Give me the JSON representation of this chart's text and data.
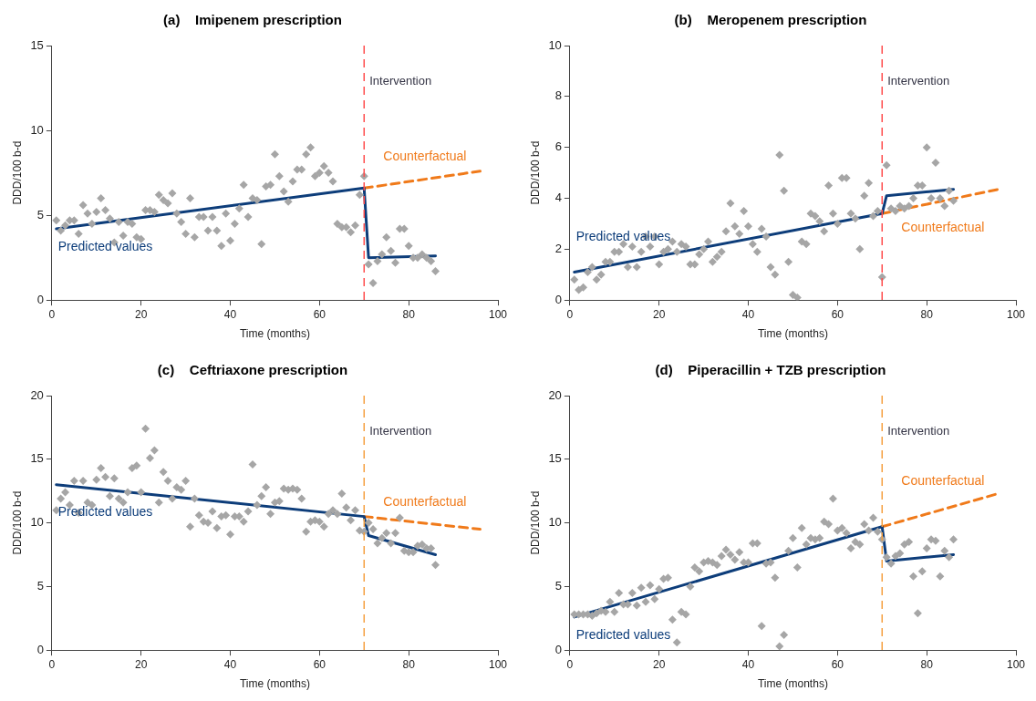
{
  "chart_data": [
    {
      "type": "scatter",
      "title": "(a)    Imipenem prescription",
      "xlabel": "Time (months)",
      "ylabel": "DDD/100 b-d",
      "xlim": [
        0,
        100
      ],
      "xticks": [
        0,
        20,
        40,
        60,
        80,
        100
      ],
      "ylim": [
        0,
        15
      ],
      "yticks": [
        0,
        5,
        10,
        15
      ],
      "grid": false,
      "legend": false,
      "series": [
        {
          "type": "scatter",
          "marker": "diamond",
          "color": "#a6a6a6",
          "x": [
            1,
            2,
            3,
            4,
            5,
            6,
            7,
            8,
            9,
            10,
            11,
            12,
            13,
            14,
            15,
            16,
            17,
            18,
            19,
            20,
            21,
            22,
            23,
            24,
            25,
            26,
            27,
            28,
            29,
            30,
            31,
            32,
            33,
            34,
            35,
            36,
            37,
            38,
            39,
            40,
            41,
            42,
            43,
            44,
            45,
            46,
            47,
            48,
            49,
            50,
            51,
            52,
            53,
            54,
            55,
            56,
            57,
            58,
            59,
            60,
            61,
            62,
            63,
            64,
            65,
            66,
            67,
            68,
            69,
            70,
            71,
            72,
            73,
            74,
            75,
            76,
            77,
            78,
            79,
            80,
            81,
            82,
            83,
            84,
            85,
            86
          ],
          "values": [
            4.7,
            4.1,
            4.4,
            4.7,
            4.7,
            3.9,
            5.6,
            5.1,
            4.5,
            5.2,
            6.0,
            5.3,
            4.8,
            3.4,
            4.6,
            3.8,
            4.6,
            4.5,
            3.7,
            3.6,
            5.3,
            5.3,
            5.2,
            6.2,
            5.9,
            5.7,
            6.3,
            5.1,
            4.6,
            3.9,
            6.0,
            3.7,
            4.9,
            4.9,
            4.1,
            4.9,
            4.1,
            3.2,
            5.1,
            3.5,
            4.5,
            5.4,
            6.8,
            4.9,
            6.0,
            5.9,
            3.3,
            6.7,
            6.8,
            8.6,
            7.3,
            6.4,
            5.8,
            7.0,
            7.7,
            7.7,
            8.6,
            9.0,
            7.3,
            7.5,
            7.9,
            7.5,
            7.0,
            4.5,
            4.3,
            4.3,
            4.0,
            4.4,
            6.2,
            7.3,
            2.1,
            1.0,
            2.3,
            2.7,
            3.7,
            2.9,
            2.2,
            4.2,
            4.2,
            3.2,
            2.5,
            2.5,
            2.7,
            2.5,
            2.3,
            1.7
          ]
        },
        {
          "type": "line",
          "name": "Predicted values",
          "marker": "none",
          "line_style": "solid",
          "color": "#0d3d7a",
          "x": [
            1,
            70,
            71,
            86
          ],
          "values": [
            4.2,
            6.6,
            2.5,
            2.6
          ]
        },
        {
          "type": "line",
          "name": "Counterfactual",
          "marker": "none",
          "line_style": "dashed",
          "color": "#f07a1a",
          "x": [
            70,
            96
          ],
          "values": [
            6.6,
            7.6
          ]
        }
      ],
      "ref_lines": [
        {
          "axis": "x",
          "value": 70,
          "label": "Intervention",
          "color": "#ff4d4d",
          "line_style": "dashed"
        }
      ]
    },
    {
      "type": "scatter",
      "title": "(b)    Meropenem prescription",
      "xlabel": "Time (months)",
      "ylabel": "DDD/100 b-d",
      "xlim": [
        0,
        100
      ],
      "xticks": [
        0,
        20,
        40,
        60,
        80,
        100
      ],
      "ylim": [
        0,
        10
      ],
      "yticks": [
        0,
        2,
        4,
        6,
        8,
        10
      ],
      "grid": false,
      "legend": false,
      "series": [
        {
          "type": "scatter",
          "marker": "diamond",
          "color": "#a6a6a6",
          "x": [
            1,
            2,
            3,
            4,
            5,
            6,
            7,
            8,
            9,
            10,
            11,
            12,
            13,
            14,
            15,
            16,
            17,
            18,
            19,
            20,
            21,
            22,
            23,
            24,
            25,
            26,
            27,
            28,
            29,
            30,
            31,
            32,
            33,
            34,
            35,
            36,
            37,
            38,
            39,
            40,
            41,
            42,
            43,
            44,
            45,
            46,
            47,
            48,
            49,
            50,
            51,
            52,
            53,
            54,
            55,
            56,
            57,
            58,
            59,
            60,
            61,
            62,
            63,
            64,
            65,
            66,
            67,
            68,
            69,
            70,
            71,
            72,
            73,
            74,
            75,
            76,
            77,
            78,
            79,
            80,
            81,
            82,
            83,
            84,
            85,
            86
          ],
          "values": [
            0.8,
            0.4,
            0.5,
            1.1,
            1.3,
            0.8,
            1.0,
            1.5,
            1.5,
            1.9,
            1.9,
            2.2,
            1.3,
            2.1,
            1.3,
            1.9,
            2.5,
            2.1,
            2.5,
            1.4,
            1.9,
            2.0,
            2.3,
            1.9,
            2.2,
            2.1,
            1.4,
            1.4,
            1.8,
            2.0,
            2.3,
            1.5,
            1.7,
            1.9,
            2.7,
            3.8,
            2.9,
            2.6,
            3.5,
            2.9,
            2.2,
            1.9,
            2.8,
            2.5,
            1.3,
            1.0,
            5.7,
            4.3,
            1.5,
            0.2,
            0.1,
            2.3,
            2.2,
            3.4,
            3.3,
            3.1,
            2.7,
            4.5,
            3.4,
            3.0,
            4.8,
            4.8,
            3.4,
            3.2,
            2.0,
            4.1,
            4.6,
            3.3,
            3.5,
            0.9,
            5.3,
            3.6,
            3.5,
            3.7,
            3.6,
            3.7,
            4.0,
            4.5,
            4.5,
            6.0,
            4.0,
            5.4,
            4.0,
            3.7,
            4.3,
            3.9
          ]
        },
        {
          "type": "line",
          "name": "Predicted values",
          "marker": "none",
          "line_style": "solid",
          "color": "#0d3d7a",
          "x": [
            1,
            70,
            71,
            86
          ],
          "values": [
            1.1,
            3.4,
            4.1,
            4.35
          ]
        },
        {
          "type": "line",
          "name": "Counterfactual",
          "marker": "none",
          "line_style": "dashed",
          "color": "#f07a1a",
          "x": [
            70,
            96
          ],
          "values": [
            3.4,
            4.35
          ]
        }
      ],
      "ref_lines": [
        {
          "axis": "x",
          "value": 70,
          "label": "Intervention",
          "color": "#ff4d4d",
          "line_style": "dashed"
        }
      ]
    },
    {
      "type": "scatter",
      "title": "(c)    Ceftriaxone prescription",
      "xlabel": "Time (months)",
      "ylabel": "DDD/100 b-d",
      "xlim": [
        0,
        100
      ],
      "xticks": [
        0,
        20,
        40,
        60,
        80,
        100
      ],
      "ylim": [
        0,
        20
      ],
      "yticks": [
        0,
        5,
        10,
        15,
        20
      ],
      "grid": false,
      "legend": false,
      "series": [
        {
          "type": "scatter",
          "marker": "diamond",
          "color": "#a6a6a6",
          "x": [
            1,
            2,
            3,
            4,
            5,
            6,
            7,
            8,
            9,
            10,
            11,
            12,
            13,
            14,
            15,
            16,
            17,
            18,
            19,
            20,
            21,
            22,
            23,
            24,
            25,
            26,
            27,
            28,
            29,
            30,
            31,
            32,
            33,
            34,
            35,
            36,
            37,
            38,
            39,
            40,
            41,
            42,
            43,
            44,
            45,
            46,
            47,
            48,
            49,
            50,
            51,
            52,
            53,
            54,
            55,
            56,
            57,
            58,
            59,
            60,
            61,
            62,
            63,
            64,
            65,
            66,
            67,
            68,
            69,
            70,
            71,
            72,
            73,
            74,
            75,
            76,
            77,
            78,
            79,
            80,
            81,
            82,
            83,
            84,
            85,
            86
          ],
          "values": [
            11.0,
            11.9,
            12.4,
            11.4,
            13.3,
            10.8,
            13.3,
            11.6,
            11.4,
            13.4,
            14.3,
            13.6,
            12.1,
            13.5,
            11.9,
            11.6,
            12.4,
            14.3,
            14.5,
            12.4,
            17.4,
            15.1,
            15.7,
            11.6,
            14.0,
            13.3,
            11.9,
            12.8,
            12.6,
            13.3,
            9.7,
            11.9,
            10.6,
            10.1,
            10.0,
            10.9,
            9.6,
            10.5,
            10.6,
            9.1,
            10.5,
            10.5,
            10.1,
            10.9,
            14.6,
            11.4,
            12.1,
            12.8,
            10.7,
            11.6,
            11.7,
            12.7,
            12.6,
            12.7,
            12.6,
            11.9,
            9.3,
            10.1,
            10.2,
            10.1,
            9.7,
            10.7,
            11.0,
            10.7,
            12.3,
            11.2,
            10.2,
            11.0,
            9.4,
            9.3,
            10.0,
            9.5,
            8.4,
            8.8,
            9.2,
            8.4,
            9.2,
            10.4,
            7.8,
            7.7,
            7.7,
            8.2,
            8.3,
            8.0,
            8.0,
            6.7
          ]
        },
        {
          "type": "line",
          "name": "Predicted values",
          "marker": "none",
          "line_style": "solid",
          "color": "#0d3d7a",
          "x": [
            1,
            70,
            71,
            86
          ],
          "values": [
            13.0,
            10.5,
            9.0,
            7.5
          ]
        },
        {
          "type": "line",
          "name": "Counterfactual",
          "marker": "none",
          "line_style": "dashed",
          "color": "#f07a1a",
          "x": [
            70,
            96
          ],
          "values": [
            10.5,
            9.5
          ]
        }
      ],
      "ref_lines": [
        {
          "axis": "x",
          "value": 70,
          "label": "Intervention",
          "color": "#f5a040",
          "line_style": "dashed"
        }
      ]
    },
    {
      "type": "scatter",
      "title": "(d)    Piperacillin + TZB prescription",
      "xlabel": "Time (months)",
      "ylabel": "DDD/100 b-d",
      "xlim": [
        0,
        100
      ],
      "xticks": [
        0,
        20,
        40,
        60,
        80,
        100
      ],
      "ylim": [
        0,
        20
      ],
      "yticks": [
        0,
        5,
        10,
        15,
        20
      ],
      "grid": false,
      "legend": false,
      "series": [
        {
          "type": "scatter",
          "marker": "diamond",
          "color": "#a6a6a6",
          "x": [
            1,
            2,
            3,
            4,
            5,
            6,
            7,
            8,
            9,
            10,
            11,
            12,
            13,
            14,
            15,
            16,
            17,
            18,
            19,
            20,
            21,
            22,
            23,
            24,
            25,
            26,
            27,
            28,
            29,
            30,
            31,
            32,
            33,
            34,
            35,
            36,
            37,
            38,
            39,
            40,
            41,
            42,
            43,
            44,
            45,
            46,
            47,
            48,
            49,
            50,
            51,
            52,
            53,
            54,
            55,
            56,
            57,
            58,
            59,
            60,
            61,
            62,
            63,
            64,
            65,
            66,
            67,
            68,
            69,
            70,
            71,
            72,
            73,
            74,
            75,
            76,
            77,
            78,
            79,
            80,
            81,
            82,
            83,
            84,
            85,
            86
          ],
          "values": [
            2.8,
            2.8,
            2.8,
            2.8,
            2.7,
            2.9,
            3.1,
            3.0,
            3.8,
            3.0,
            4.5,
            3.6,
            3.6,
            4.5,
            3.5,
            4.9,
            3.8,
            5.1,
            4.0,
            4.8,
            5.6,
            5.7,
            2.4,
            0.6,
            3.0,
            2.8,
            5.0,
            6.5,
            6.2,
            6.9,
            7.0,
            6.9,
            6.7,
            7.4,
            7.9,
            7.5,
            7.1,
            7.7,
            6.9,
            6.9,
            8.4,
            8.4,
            1.9,
            6.8,
            6.9,
            5.7,
            0.3,
            1.2,
            7.8,
            8.8,
            6.5,
            9.6,
            8.3,
            8.8,
            8.7,
            8.8,
            10.1,
            9.9,
            11.9,
            9.4,
            9.6,
            9.2,
            8.0,
            8.5,
            8.3,
            9.9,
            9.4,
            10.4,
            9.3,
            8.7,
            7.3,
            6.8,
            7.4,
            7.6,
            8.3,
            8.5,
            5.8,
            2.9,
            6.2,
            8.0,
            8.7,
            8.6,
            5.8,
            7.8,
            7.3,
            8.7
          ]
        },
        {
          "type": "line",
          "name": "Predicted values",
          "marker": "none",
          "line_style": "solid",
          "color": "#0d3d7a",
          "x": [
            1,
            70,
            71,
            86
          ],
          "values": [
            2.6,
            9.7,
            7.0,
            7.5
          ]
        },
        {
          "type": "line",
          "name": "Counterfactual",
          "marker": "none",
          "line_style": "dashed",
          "color": "#f07a1a",
          "x": [
            70,
            96
          ],
          "values": [
            9.7,
            12.3
          ]
        }
      ],
      "ref_lines": [
        {
          "axis": "x",
          "value": 70,
          "label": "Intervention",
          "color": "#f5a040",
          "line_style": "dashed"
        }
      ]
    }
  ]
}
